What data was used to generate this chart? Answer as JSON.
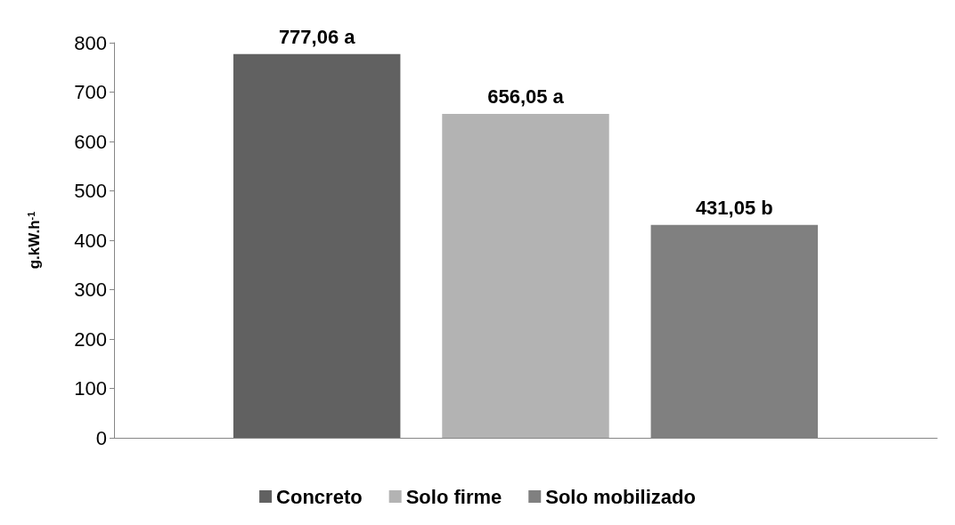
{
  "chart_data": {
    "type": "bar",
    "ylabel": "g.kW.h$^{-1}$",
    "categories": [
      null
    ],
    "series": [
      {
        "name": "Concreto",
        "color": "#616161",
        "values": [
          777.06
        ],
        "value_labels": [
          "777,06 a"
        ]
      },
      {
        "name": "Solo firme",
        "color": "#b3b3b3",
        "values": [
          656.05
        ],
        "value_labels": [
          "656,05 a"
        ]
      },
      {
        "name": "Solo mobilizado",
        "color": "#808080",
        "values": [
          431.05
        ],
        "value_labels": [
          "431,05 b"
        ]
      }
    ],
    "ylim": [
      0,
      800
    ],
    "yticks": [
      0,
      100,
      200,
      300,
      400,
      500,
      600,
      700,
      800
    ],
    "grid": false,
    "legend": "bottom"
  }
}
